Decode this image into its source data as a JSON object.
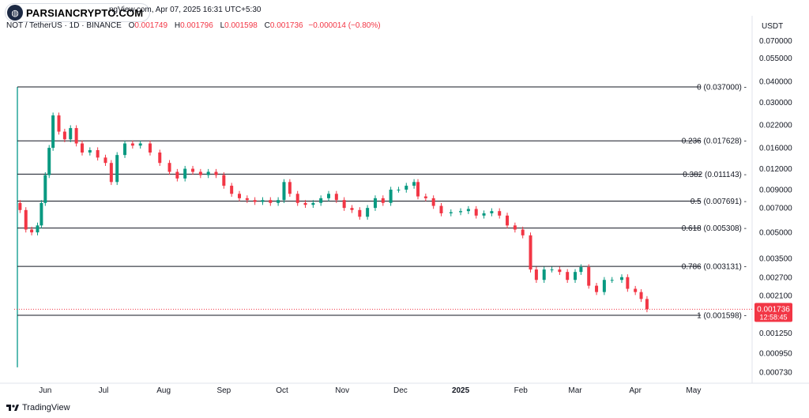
{
  "watermark": "PARSIANCRYPTO.COM",
  "header": {
    "published": "ngView.com, Apr 07, 2025 16:31 UTC+5:30",
    "symbol": "NOT / TetherUS · 1D · BINANCE",
    "open_label": "O",
    "open": "0.001749",
    "high_label": "H",
    "high": "0.001796",
    "low_label": "L",
    "low": "0.001598",
    "close_label": "C",
    "close": "0.001736",
    "change": "−0.000014 (−0.80%)"
  },
  "footer": {
    "brand": "TradingView",
    "logo": "tradingview-logo"
  },
  "colors": {
    "up": "#089981",
    "down": "#f23645",
    "fib_line": "#131722",
    "current_price": "#f23645"
  },
  "chart_data": {
    "type": "candlestick",
    "symbol": "NOT / TetherUS",
    "quote_currency": "USDT",
    "scale": "log",
    "grid": false,
    "y_ticks": [
      "0.070000",
      "0.055000",
      "0.040000",
      "0.030000",
      "0.022000",
      "0.016000",
      "0.012000",
      "0.009000",
      "0.007000",
      "0.005000",
      "0.003500",
      "0.002700",
      "0.002100",
      "0.001250",
      "0.000950",
      "0.000730"
    ],
    "x_ticks": [
      "Jun",
      "Jul",
      "Aug",
      "Sep",
      "Oct",
      "Nov",
      "Dec",
      "2025",
      "Feb",
      "Mar",
      "Apr",
      "May"
    ],
    "x_range": [
      "2024-05-16",
      "2025-05-10"
    ],
    "fib_levels": [
      {
        "ratio": "0",
        "price": "0.037000",
        "label": "0 (0.037000)"
      },
      {
        "ratio": "0.236",
        "price": "0.017628",
        "label": "0.236 (0.017628)"
      },
      {
        "ratio": "0.382",
        "price": "0.011143",
        "label": "0.382 (0.011143)"
      },
      {
        "ratio": "0.5",
        "price": "0.007691",
        "label": "0.5 (0.007691)"
      },
      {
        "ratio": "0.618",
        "price": "0.005308",
        "label": "0.618 (0.005308)"
      },
      {
        "ratio": "0.786",
        "price": "0.003131",
        "label": "0.786 (0.003131)"
      },
      {
        "ratio": "1",
        "price": "0.001598",
        "label": "1 (0.001598)"
      }
    ],
    "last_price": "0.001736",
    "countdown": "12:58:45",
    "price_points": [
      [
        "2024-05-16",
        0.0075
      ],
      [
        "2024-05-19",
        0.0068
      ],
      [
        "2024-05-22",
        0.0052
      ],
      [
        "2024-05-25",
        0.005
      ],
      [
        "2024-05-28",
        0.0055
      ],
      [
        "2024-05-30",
        0.0075
      ],
      [
        "2024-06-01",
        0.011
      ],
      [
        "2024-06-03",
        0.016
      ],
      [
        "2024-06-05",
        0.025
      ],
      [
        "2024-06-08",
        0.02
      ],
      [
        "2024-06-11",
        0.018
      ],
      [
        "2024-06-14",
        0.021
      ],
      [
        "2024-06-17",
        0.017
      ],
      [
        "2024-06-20",
        0.015
      ],
      [
        "2024-06-24",
        0.0155
      ],
      [
        "2024-06-28",
        0.014
      ],
      [
        "2024-07-02",
        0.013
      ],
      [
        "2024-07-05",
        0.01
      ],
      [
        "2024-07-08",
        0.0145
      ],
      [
        "2024-07-12",
        0.017
      ],
      [
        "2024-07-16",
        0.0165
      ],
      [
        "2024-07-20",
        0.017
      ],
      [
        "2024-07-25",
        0.015
      ],
      [
        "2024-07-30",
        0.013
      ],
      [
        "2024-08-04",
        0.0115
      ],
      [
        "2024-08-08",
        0.0105
      ],
      [
        "2024-08-12",
        0.012
      ],
      [
        "2024-08-16",
        0.0115
      ],
      [
        "2024-08-20",
        0.011
      ],
      [
        "2024-08-24",
        0.0115
      ],
      [
        "2024-08-28",
        0.011
      ],
      [
        "2024-09-01",
        0.0095
      ],
      [
        "2024-09-05",
        0.0085
      ],
      [
        "2024-09-09",
        0.008
      ],
      [
        "2024-09-13",
        0.0078
      ],
      [
        "2024-09-17",
        0.0076
      ],
      [
        "2024-09-21",
        0.0078
      ],
      [
        "2024-09-25",
        0.0075
      ],
      [
        "2024-09-29",
        0.0078
      ],
      [
        "2024-10-02",
        0.01
      ],
      [
        "2024-10-05",
        0.0085
      ],
      [
        "2024-10-09",
        0.0075
      ],
      [
        "2024-10-13",
        0.0073
      ],
      [
        "2024-10-17",
        0.0075
      ],
      [
        "2024-10-21",
        0.008
      ],
      [
        "2024-10-25",
        0.0085
      ],
      [
        "2024-10-29",
        0.0078
      ],
      [
        "2024-11-02",
        0.007
      ],
      [
        "2024-11-06",
        0.0068
      ],
      [
        "2024-11-10",
        0.0062
      ],
      [
        "2024-11-14",
        0.007
      ],
      [
        "2024-11-18",
        0.008
      ],
      [
        "2024-11-22",
        0.0075
      ],
      [
        "2024-11-26",
        0.009
      ],
      [
        "2024-11-30",
        0.009
      ],
      [
        "2024-12-04",
        0.0095
      ],
      [
        "2024-12-08",
        0.01
      ],
      [
        "2024-12-10",
        0.0082
      ],
      [
        "2024-12-14",
        0.008
      ],
      [
        "2024-12-18",
        0.0072
      ],
      [
        "2024-12-22",
        0.0065
      ],
      [
        "2024-12-27",
        0.0066
      ],
      [
        "2025-01-01",
        0.0067
      ],
      [
        "2025-01-05",
        0.0069
      ],
      [
        "2025-01-09",
        0.0063
      ],
      [
        "2025-01-13",
        0.0065
      ],
      [
        "2025-01-17",
        0.0067
      ],
      [
        "2025-01-21",
        0.0063
      ],
      [
        "2025-01-25",
        0.0055
      ],
      [
        "2025-01-29",
        0.0052
      ],
      [
        "2025-02-02",
        0.0048
      ],
      [
        "2025-02-06",
        0.003
      ],
      [
        "2025-02-09",
        0.0026
      ],
      [
        "2025-02-13",
        0.003
      ],
      [
        "2025-02-17",
        0.003
      ],
      [
        "2025-02-21",
        0.0029
      ],
      [
        "2025-02-25",
        0.0026
      ],
      [
        "2025-03-01",
        0.0029
      ],
      [
        "2025-03-04",
        0.0031
      ],
      [
        "2025-03-08",
        0.0024
      ],
      [
        "2025-03-12",
        0.0022
      ],
      [
        "2025-03-16",
        0.0026
      ],
      [
        "2025-03-20",
        0.0026
      ],
      [
        "2025-03-25",
        0.0027
      ],
      [
        "2025-03-28",
        0.0023
      ],
      [
        "2025-04-01",
        0.0022
      ],
      [
        "2025-04-04",
        0.002
      ],
      [
        "2025-04-07",
        0.001736
      ]
    ]
  }
}
